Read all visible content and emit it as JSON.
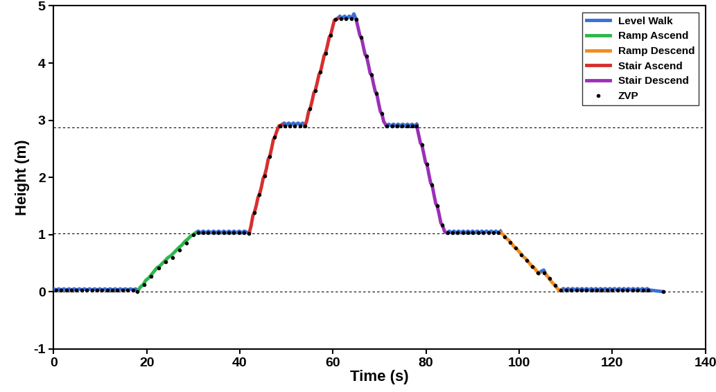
{
  "chart_data": {
    "type": "line",
    "xlabel": "Time (s)",
    "ylabel": "Height (m)",
    "xlim": [
      0,
      140
    ],
    "xticks": [
      0,
      20,
      40,
      60,
      80,
      100,
      120,
      140
    ],
    "ylim": [
      -1,
      5
    ],
    "yticks": [
      -1,
      0,
      1,
      2,
      3,
      4,
      5
    ],
    "grid": false,
    "legend": "upper right",
    "hlines": [
      0,
      1.02,
      2.87
    ],
    "series": [
      {
        "name": "Level Walk",
        "type": "line",
        "color": "#3b6fd4",
        "line_style": "solid",
        "x": [
          0,
          0.55,
          1.1,
          1.65,
          2.2,
          2.75,
          3.3,
          3.85,
          4.4,
          4.95,
          5.5,
          6.05,
          6.6,
          7.15,
          7.7,
          8.25,
          8.8,
          9.35,
          9.9,
          10.45,
          11.0,
          11.55,
          12.1,
          12.65,
          13.2,
          13.75,
          14.3,
          14.85,
          15.4,
          15.95,
          16.5,
          17.05,
          17.6,
          18.0,
          24.0,
          30.5,
          31.05,
          31.6,
          32.15,
          32.7,
          33.25,
          33.8,
          34.35,
          34.9,
          35.45,
          36.0,
          36.55,
          37.1,
          37.65,
          38.2,
          38.75,
          39.3,
          39.85,
          40.4,
          40.95,
          41.5,
          42.0,
          45.5,
          49.0,
          49.5,
          50.0,
          50.5,
          51.0,
          51.5,
          52.0,
          52.5,
          53.0,
          53.5,
          54.0,
          57.5,
          61.0,
          61.5,
          62.0,
          62.5,
          63.0,
          63.5,
          64.0,
          64.5,
          65.0,
          68.0,
          71.5,
          72.0,
          72.5,
          73.0,
          73.5,
          74.0,
          74.5,
          75.0,
          75.5,
          76.0,
          76.5,
          77.0,
          77.5,
          78.0,
          81.0,
          84.5,
          85.0,
          85.5,
          86.0,
          86.5,
          87.0,
          87.5,
          88.0,
          88.5,
          89.0,
          89.5,
          90.0,
          90.5,
          91.0,
          91.5,
          92.0,
          92.5,
          93.0,
          93.5,
          94.0,
          94.5,
          95.0,
          95.5,
          96.0,
          100.0,
          104.3,
          104.8,
          105.3,
          105.8,
          107.0,
          109.0,
          109.5,
          110.0,
          110.5,
          111.0,
          111.5,
          112.0,
          112.5,
          113.0,
          113.5,
          114.0,
          114.5,
          115.0,
          115.5,
          116.0,
          116.5,
          117.0,
          117.5,
          118.0,
          118.5,
          119.0,
          119.5,
          120.0,
          120.5,
          121.0,
          121.5,
          122.0,
          122.5,
          123.0,
          123.5,
          124.0,
          124.5,
          125.0,
          125.5,
          126.0,
          126.5,
          127.0,
          127.5,
          128.0,
          129.0,
          130.0,
          131.0
        ],
        "values": [
          0.05,
          0.03,
          0.05,
          0.03,
          0.05,
          0.03,
          0.05,
          0.03,
          0.05,
          0.03,
          0.05,
          0.03,
          0.05,
          0.03,
          0.05,
          0.03,
          0.05,
          0.03,
          0.05,
          0.03,
          0.05,
          0.03,
          0.05,
          0.03,
          0.05,
          0.03,
          0.05,
          0.03,
          0.05,
          0.03,
          0.05,
          0.03,
          0.05,
          0.02,
          null,
          1.03,
          1.06,
          1.03,
          1.06,
          1.03,
          1.06,
          1.03,
          1.06,
          1.03,
          1.06,
          1.03,
          1.06,
          1.03,
          1.06,
          1.03,
          1.06,
          1.03,
          1.06,
          1.03,
          1.06,
          1.04,
          1.02,
          null,
          2.92,
          2.95,
          2.92,
          2.95,
          2.92,
          2.95,
          2.92,
          2.95,
          2.92,
          2.95,
          2.9,
          null,
          4.78,
          4.82,
          4.78,
          4.82,
          4.78,
          4.82,
          4.78,
          4.86,
          4.76,
          null,
          2.9,
          2.93,
          2.9,
          2.93,
          2.9,
          2.93,
          2.9,
          2.93,
          2.9,
          2.93,
          2.9,
          2.93,
          2.9,
          2.93,
          null,
          1.03,
          1.06,
          1.03,
          1.06,
          1.03,
          1.06,
          1.03,
          1.06,
          1.03,
          1.06,
          1.03,
          1.06,
          1.03,
          1.06,
          1.03,
          1.06,
          1.03,
          1.06,
          1.03,
          1.06,
          1.03,
          1.06,
          1.03,
          1.06,
          null,
          0.32,
          0.36,
          0.38,
          0.3,
          null,
          0.03,
          0.055,
          0.03,
          0.055,
          0.03,
          0.055,
          0.03,
          0.055,
          0.03,
          0.055,
          0.03,
          0.055,
          0.03,
          0.055,
          0.03,
          0.055,
          0.03,
          0.055,
          0.03,
          0.055,
          0.03,
          0.055,
          0.03,
          0.055,
          0.03,
          0.055,
          0.03,
          0.055,
          0.03,
          0.055,
          0.03,
          0.055,
          0.03,
          0.055,
          0.03,
          0.055,
          0.03,
          0.055,
          0.03,
          0.02,
          0.01,
          0.0
        ]
      },
      {
        "name": "Ramp Ascend",
        "type": "line",
        "color": "#2db84b",
        "line_style": "solid",
        "x": [
          18.0,
          18.6,
          19.2,
          19.8,
          20.4,
          21.0,
          21.6,
          22.2,
          22.8,
          23.4,
          24.0,
          24.6,
          25.2,
          25.8,
          26.4,
          27.0,
          27.6,
          28.2,
          28.8,
          29.4,
          30.0,
          30.5
        ],
        "values": [
          0.0,
          0.08,
          0.12,
          0.2,
          0.24,
          0.3,
          0.36,
          0.42,
          0.45,
          0.5,
          0.55,
          0.6,
          0.63,
          0.68,
          0.73,
          0.78,
          0.82,
          0.88,
          0.92,
          0.97,
          1.0,
          1.03
        ]
      },
      {
        "name": "Ramp Descend",
        "type": "line",
        "color": "#f28c1e",
        "line_style": "solid",
        "x": [
          96.0,
          96.6,
          97.2,
          97.8,
          98.4,
          99.0,
          99.6,
          100.2,
          100.8,
          101.4,
          102.0,
          102.6,
          103.2,
          103.8,
          104.3,
          105.0,
          105.8,
          106.4,
          107.0,
          107.6,
          108.2,
          108.6,
          109.0
        ],
        "values": [
          1.03,
          1.0,
          0.94,
          0.9,
          0.84,
          0.78,
          0.74,
          0.68,
          0.62,
          0.58,
          0.52,
          0.46,
          0.42,
          0.36,
          0.32,
          null,
          0.3,
          0.24,
          0.17,
          0.12,
          0.06,
          0.02,
          0.03
        ]
      },
      {
        "name": "Stair Ascend",
        "type": "line",
        "color": "#d62f2f",
        "line_style": "solid",
        "x": [
          42.0,
          42.4,
          42.8,
          43.1,
          43.5,
          43.9,
          44.2,
          44.6,
          45.0,
          45.3,
          45.7,
          46.1,
          46.4,
          46.8,
          47.2,
          47.5,
          47.9,
          48.4,
          49.0,
          51.5,
          54.0,
          54.4,
          54.8,
          55.1,
          55.5,
          55.9,
          56.2,
          56.6,
          57.0,
          57.3,
          57.7,
          58.1,
          58.4,
          58.8,
          59.2,
          59.5,
          59.9,
          60.3,
          61.0
        ],
        "values": [
          1.02,
          1.15,
          1.33,
          1.38,
          1.5,
          1.65,
          1.7,
          1.82,
          1.98,
          2.03,
          2.15,
          2.32,
          2.36,
          2.5,
          2.66,
          2.7,
          2.8,
          2.9,
          2.92,
          null,
          2.9,
          3.0,
          3.16,
          3.2,
          3.33,
          3.48,
          3.52,
          3.65,
          3.8,
          3.84,
          3.98,
          4.13,
          4.17,
          4.3,
          4.45,
          4.49,
          4.62,
          4.75,
          4.78
        ]
      },
      {
        "name": "Stair Descend",
        "type": "line",
        "color": "#9b30b8",
        "line_style": "solid",
        "x": [
          65.0,
          65.4,
          65.8,
          66.1,
          66.5,
          66.9,
          67.2,
          67.6,
          68.0,
          68.3,
          68.7,
          69.1,
          69.4,
          69.8,
          70.2,
          70.5,
          70.9,
          71.5,
          74.8,
          78.0,
          78.4,
          78.8,
          79.1,
          79.5,
          79.9,
          80.2,
          80.6,
          81.0,
          81.3,
          81.7,
          82.1,
          82.4,
          82.8,
          83.2,
          83.5,
          84.0,
          84.5
        ],
        "values": [
          4.76,
          4.62,
          4.48,
          4.45,
          4.3,
          4.15,
          4.12,
          3.98,
          3.82,
          3.8,
          3.64,
          3.5,
          3.47,
          3.3,
          3.15,
          3.12,
          2.98,
          2.9,
          null,
          2.9,
          2.75,
          2.6,
          2.57,
          2.42,
          2.26,
          2.23,
          2.06,
          1.9,
          1.87,
          1.7,
          1.54,
          1.5,
          1.36,
          1.2,
          1.17,
          1.05,
          1.03
        ]
      },
      {
        "name": "ZVP",
        "type": "scatter",
        "color": "#000000",
        "marker": "o",
        "x": [
          0.5,
          1.6,
          2.7,
          3.8,
          4.9,
          6.0,
          7.1,
          8.2,
          9.3,
          10.4,
          11.5,
          12.6,
          13.7,
          14.8,
          15.9,
          17.0,
          18.0,
          19.5,
          21.0,
          22.5,
          24.0,
          25.5,
          27.0,
          28.5,
          30.0,
          31.0,
          32.1,
          33.2,
          34.3,
          35.4,
          36.5,
          37.6,
          38.7,
          39.8,
          40.9,
          42.0,
          43.1,
          44.2,
          45.3,
          46.4,
          47.5,
          48.6,
          49.6,
          50.7,
          51.8,
          52.9,
          54.0,
          55.1,
          56.2,
          57.3,
          58.4,
          59.5,
          60.6,
          61.7,
          62.8,
          64.0,
          65.0,
          66.1,
          67.2,
          68.3,
          69.4,
          70.5,
          71.6,
          72.7,
          73.8,
          74.9,
          76.0,
          77.1,
          78.0,
          79.1,
          80.2,
          81.3,
          82.4,
          83.5,
          84.6,
          85.7,
          86.8,
          87.9,
          89.0,
          90.1,
          91.2,
          92.3,
          93.4,
          94.5,
          95.6,
          96.9,
          98.1,
          99.3,
          100.5,
          101.7,
          102.9,
          104.1,
          105.3,
          106.5,
          107.7,
          109.0,
          110.1,
          111.2,
          112.3,
          113.4,
          114.5,
          115.6,
          116.7,
          117.8,
          118.9,
          120.0,
          121.1,
          122.2,
          123.3,
          124.4,
          125.5,
          126.6,
          127.7,
          131.0
        ],
        "values": [
          0.03,
          0.03,
          0.03,
          0.03,
          0.03,
          0.03,
          0.03,
          0.03,
          0.03,
          0.03,
          0.03,
          0.03,
          0.03,
          0.03,
          0.03,
          0.03,
          0.0,
          0.12,
          0.27,
          0.42,
          0.52,
          0.6,
          0.73,
          0.85,
          1.0,
          1.03,
          1.03,
          1.03,
          1.03,
          1.03,
          1.03,
          1.03,
          1.03,
          1.03,
          1.03,
          1.02,
          1.38,
          1.7,
          2.03,
          2.36,
          2.7,
          2.9,
          2.9,
          2.9,
          2.9,
          2.9,
          2.9,
          3.2,
          3.52,
          3.84,
          4.17,
          4.49,
          4.76,
          4.78,
          4.78,
          4.78,
          4.76,
          4.45,
          4.12,
          3.8,
          3.47,
          3.12,
          2.9,
          2.9,
          2.9,
          2.9,
          2.9,
          2.9,
          2.9,
          2.57,
          2.23,
          1.87,
          1.5,
          1.17,
          1.03,
          1.03,
          1.03,
          1.03,
          1.03,
          1.03,
          1.03,
          1.03,
          1.03,
          1.03,
          1.03,
          0.96,
          0.86,
          0.76,
          0.65,
          0.55,
          0.44,
          0.33,
          0.33,
          0.23,
          0.11,
          0.03,
          0.03,
          0.03,
          0.03,
          0.03,
          0.03,
          0.03,
          0.03,
          0.03,
          0.03,
          0.03,
          0.03,
          0.03,
          0.03,
          0.03,
          0.03,
          0.03,
          0.03,
          0.0
        ]
      }
    ]
  }
}
